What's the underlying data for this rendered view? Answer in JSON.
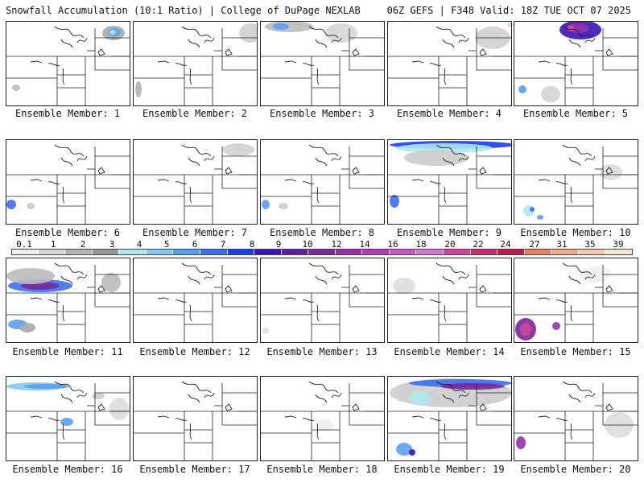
{
  "header": {
    "title_left": "Snowfall Accumulation (10:1 Ratio) | College of DuPage NEXLAB",
    "title_right": "06Z GEFS | F348 Valid: 18Z TUE OCT 07 2025"
  },
  "colorbar": {
    "labels": [
      "0.1",
      "1",
      "2",
      "3",
      "4",
      "5",
      "6",
      "7",
      "8",
      "9",
      "10",
      "12",
      "14",
      "16",
      "18",
      "20",
      "22",
      "24",
      "27",
      "31",
      "35",
      "39"
    ],
    "colors": [
      "#f0f0f0",
      "#d4d4d4",
      "#b4b4b4",
      "#969696",
      "#aee8f0",
      "#86c8ee",
      "#5a9ef0",
      "#3c6ef0",
      "#1e3cf0",
      "#3c14b4",
      "#5a1e9e",
      "#78289a",
      "#9632a6",
      "#b43cb4",
      "#c85ac8",
      "#d278d2",
      "#d2469c",
      "#c8286e",
      "#b41e46",
      "#e68264",
      "#f0aa8c",
      "#f5c8b0",
      "#fae6d6"
    ]
  },
  "members": [
    {
      "label": "Ensemble Member: 1"
    },
    {
      "label": "Ensemble Member: 2"
    },
    {
      "label": "Ensemble Member: 3"
    },
    {
      "label": "Ensemble Member: 4"
    },
    {
      "label": "Ensemble Member: 5"
    },
    {
      "label": "Ensemble Member: 6"
    },
    {
      "label": "Ensemble Member: 7"
    },
    {
      "label": "Ensemble Member: 8"
    },
    {
      "label": "Ensemble Member: 9"
    },
    {
      "label": "Ensemble Member: 10"
    },
    {
      "label": "Ensemble Member: 11"
    },
    {
      "label": "Ensemble Member: 12"
    },
    {
      "label": "Ensemble Member: 13"
    },
    {
      "label": "Ensemble Member: 14"
    },
    {
      "label": "Ensemble Member: 15"
    },
    {
      "label": "Ensemble Member: 16"
    },
    {
      "label": "Ensemble Member: 17"
    },
    {
      "label": "Ensemble Member: 18"
    },
    {
      "label": "Ensemble Member: 19"
    },
    {
      "label": "Ensemble Member: 20"
    }
  ]
}
